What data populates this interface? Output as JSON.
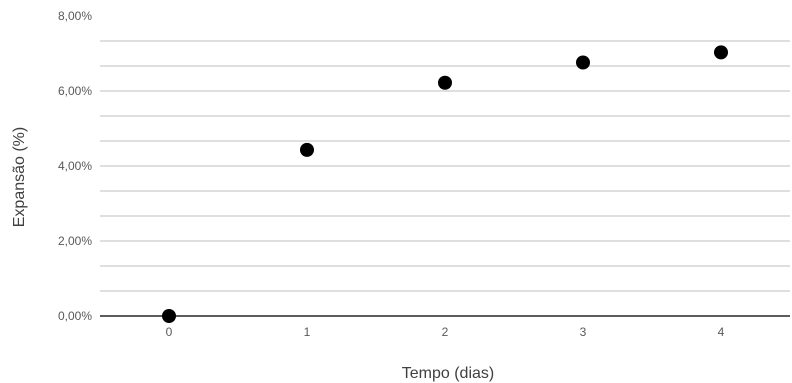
{
  "chart_data": {
    "type": "scatter",
    "title": "",
    "xlabel": "Tempo (dias)",
    "ylabel": "Expansão (%)",
    "x": [
      0,
      1,
      2,
      3,
      4
    ],
    "y": [
      0.0,
      4.43,
      6.22,
      6.76,
      7.03
    ],
    "x_ticks": [
      "0",
      "1",
      "2",
      "3",
      "4"
    ],
    "y_ticks": [
      "0,00%",
      "2,00%",
      "4,00%",
      "6,00%",
      "8,00%"
    ],
    "y_tick_values": [
      0,
      2,
      4,
      6,
      8
    ],
    "xlim": [
      -0.5,
      4.5
    ],
    "ylim": [
      0,
      8
    ],
    "minor_gridlines_every": 0.6667,
    "grid": true,
    "legend": "none",
    "marker_color": "#000000",
    "gridline_color": "#bfbfbf",
    "axis_color": "#262626"
  }
}
